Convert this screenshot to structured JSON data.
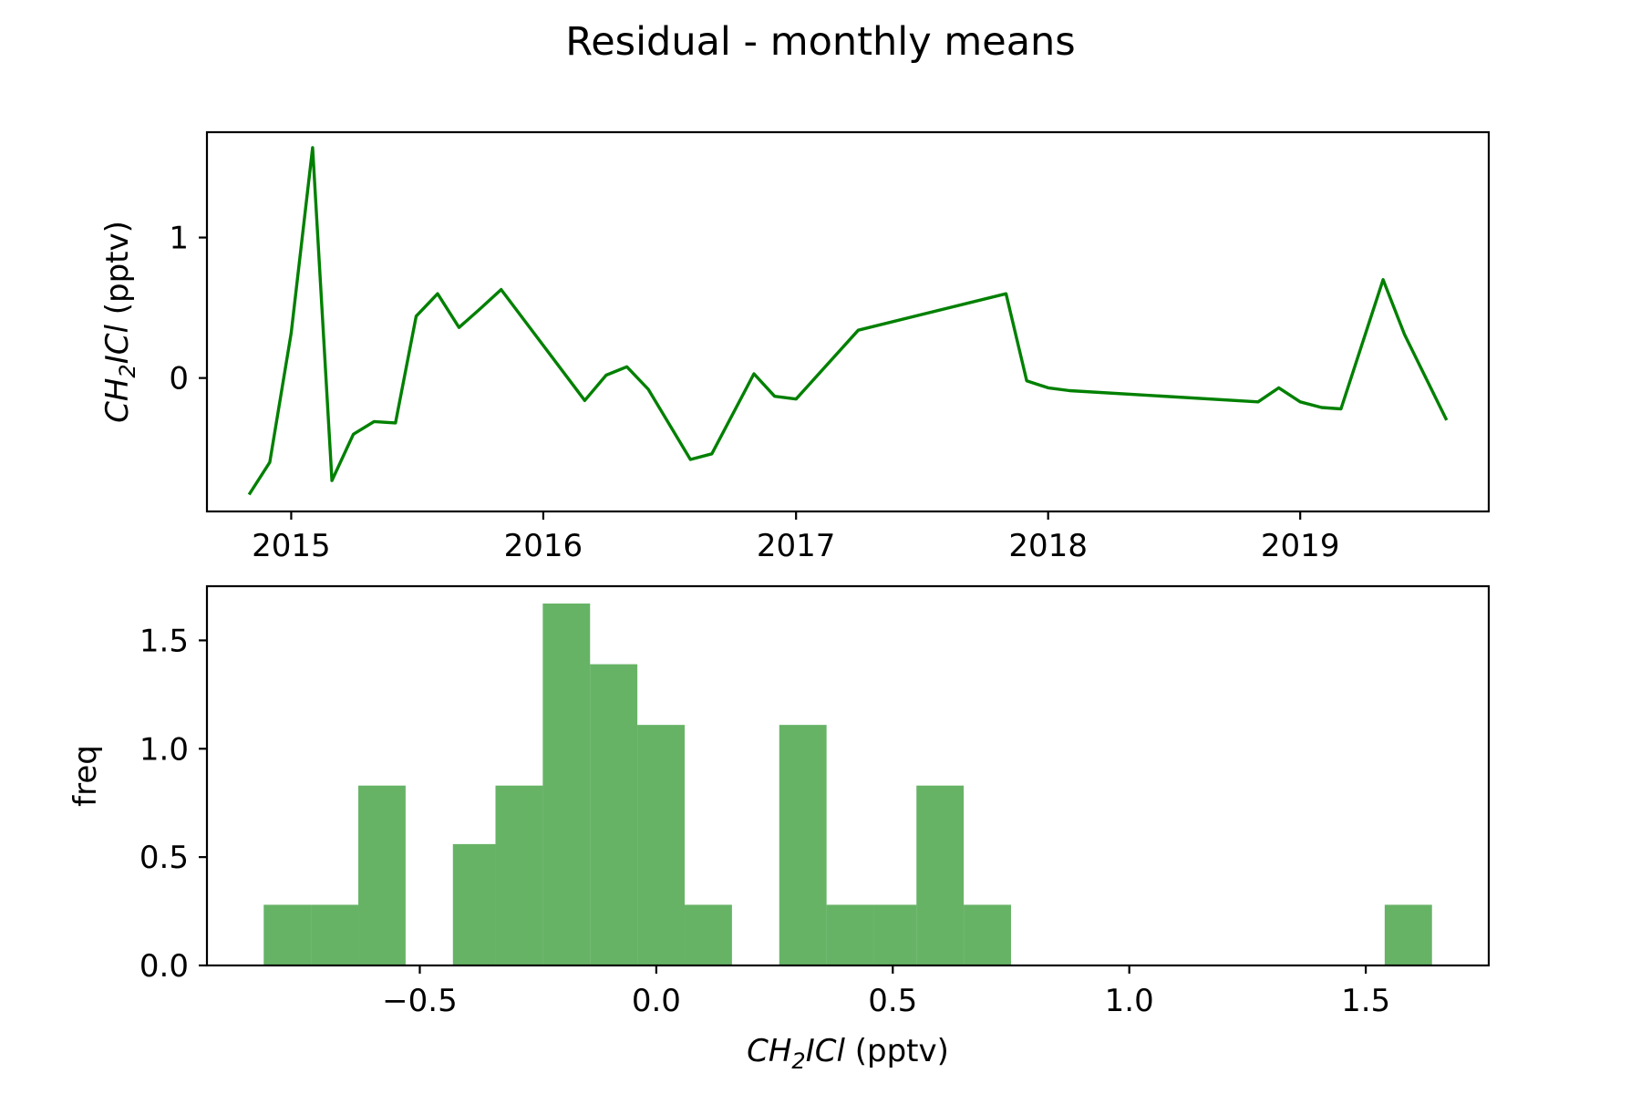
{
  "figure": {
    "title": "Residual - monthly means"
  },
  "chart_data": [
    {
      "type": "line",
      "xlabel": "",
      "ylabel": {
        "base": "CH",
        "sub": "2",
        "rest": "ICl",
        "unit": "(pptv)"
      },
      "color": "#008000",
      "xlim": [
        "2014-09-01",
        "2019-10-01"
      ],
      "ylim": [
        -0.95,
        1.75
      ],
      "xticks": [
        {
          "label": "2015",
          "value": "2015-01-01"
        },
        {
          "label": "2016",
          "value": "2016-01-01"
        },
        {
          "label": "2017",
          "value": "2017-01-01"
        },
        {
          "label": "2018",
          "value": "2018-01-01"
        },
        {
          "label": "2019",
          "value": "2019-01-01"
        }
      ],
      "yticks": [
        {
          "label": "0",
          "value": 0
        },
        {
          "label": "1",
          "value": 1
        }
      ],
      "points": [
        {
          "x": "2014-11-01",
          "y": -0.83
        },
        {
          "x": "2014-12-01",
          "y": -0.6
        },
        {
          "x": "2015-01-01",
          "y": 0.32
        },
        {
          "x": "2015-02-01",
          "y": 1.64
        },
        {
          "x": "2015-03-01",
          "y": -0.73
        },
        {
          "x": "2015-04-01",
          "y": -0.4
        },
        {
          "x": "2015-05-01",
          "y": -0.31
        },
        {
          "x": "2015-06-01",
          "y": -0.32
        },
        {
          "x": "2015-07-01",
          "y": 0.44
        },
        {
          "x": "2015-08-01",
          "y": 0.6
        },
        {
          "x": "2015-09-01",
          "y": 0.36
        },
        {
          "x": "2015-10-01",
          "y": 0.49
        },
        {
          "x": "2015-11-01",
          "y": 0.63
        },
        {
          "x": "2016-03-01",
          "y": -0.16
        },
        {
          "x": "2016-04-01",
          "y": 0.02
        },
        {
          "x": "2016-05-01",
          "y": 0.08
        },
        {
          "x": "2016-06-01",
          "y": -0.08
        },
        {
          "x": "2016-08-01",
          "y": -0.58
        },
        {
          "x": "2016-09-01",
          "y": -0.54
        },
        {
          "x": "2016-11-01",
          "y": 0.03
        },
        {
          "x": "2016-12-01",
          "y": -0.13
        },
        {
          "x": "2017-01-01",
          "y": -0.15
        },
        {
          "x": "2017-04-01",
          "y": 0.34
        },
        {
          "x": "2017-11-01",
          "y": 0.6
        },
        {
          "x": "2017-12-01",
          "y": -0.02
        },
        {
          "x": "2018-01-01",
          "y": -0.07
        },
        {
          "x": "2018-02-01",
          "y": -0.09
        },
        {
          "x": "2018-11-01",
          "y": -0.17
        },
        {
          "x": "2018-12-01",
          "y": -0.07
        },
        {
          "x": "2019-01-01",
          "y": -0.17
        },
        {
          "x": "2019-02-01",
          "y": -0.21
        },
        {
          "x": "2019-03-01",
          "y": -0.22
        },
        {
          "x": "2019-05-01",
          "y": 0.7
        },
        {
          "x": "2019-06-01",
          "y": 0.31
        },
        {
          "x": "2019-08-01",
          "y": -0.3
        }
      ]
    },
    {
      "type": "bar",
      "histogram": true,
      "xlabel": {
        "base": "CH",
        "sub": "2",
        "rest": "ICl",
        "unit": "(pptv)"
      },
      "ylabel": "freq",
      "color": "#008000",
      "opacity": 0.6,
      "xlim": [
        -0.95,
        1.76
      ],
      "ylim": [
        0,
        1.75
      ],
      "xticks": [
        {
          "label": "−0.5",
          "value": -0.5
        },
        {
          "label": "0.0",
          "value": 0
        },
        {
          "label": "0.5",
          "value": 0.5
        },
        {
          "label": "1.0",
          "value": 1.0
        },
        {
          "label": "1.5",
          "value": 1.5
        }
      ],
      "yticks": [
        {
          "label": "0.0",
          "value": 0
        },
        {
          "label": "0.5",
          "value": 0.5
        },
        {
          "label": "1.0",
          "value": 1.0
        },
        {
          "label": "1.5",
          "value": 1.5
        }
      ],
      "bins": [
        {
          "x0": -0.83,
          "x1": -0.73,
          "value": 0.28
        },
        {
          "x0": -0.73,
          "x1": -0.63,
          "value": 0.28
        },
        {
          "x0": -0.63,
          "x1": -0.53,
          "value": 0.83
        },
        {
          "x0": -0.53,
          "x1": -0.43,
          "value": 0
        },
        {
          "x0": -0.43,
          "x1": -0.34,
          "value": 0.56
        },
        {
          "x0": -0.34,
          "x1": -0.24,
          "value": 0.83
        },
        {
          "x0": -0.24,
          "x1": -0.14,
          "value": 1.67
        },
        {
          "x0": -0.14,
          "x1": -0.04,
          "value": 1.39
        },
        {
          "x0": -0.04,
          "x1": 0.06,
          "value": 1.11
        },
        {
          "x0": 0.06,
          "x1": 0.16,
          "value": 0.28
        },
        {
          "x0": 0.16,
          "x1": 0.26,
          "value": 0
        },
        {
          "x0": 0.26,
          "x1": 0.36,
          "value": 1.11
        },
        {
          "x0": 0.36,
          "x1": 0.46,
          "value": 0.28
        },
        {
          "x0": 0.46,
          "x1": 0.55,
          "value": 0.28
        },
        {
          "x0": 0.55,
          "x1": 0.65,
          "value": 0.83
        },
        {
          "x0": 0.65,
          "x1": 0.75,
          "value": 0.28
        },
        {
          "x0": 1.54,
          "x1": 1.64,
          "value": 0.28
        }
      ]
    }
  ]
}
